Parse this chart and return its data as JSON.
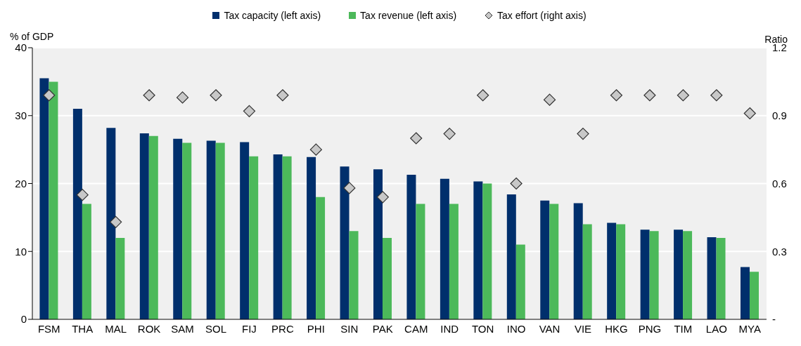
{
  "chart_data": {
    "type": "bar",
    "ylabel": "% of GDP",
    "y2label": "Ratio",
    "categories": [
      "FSM",
      "THA",
      "MAL",
      "ROK",
      "SAM",
      "SOL",
      "FIJ",
      "PRC",
      "PHI",
      "SIN",
      "PAK",
      "CAM",
      "IND",
      "TON",
      "INO",
      "VAN",
      "VIE",
      "HKG",
      "PNG",
      "TIM",
      "LAO",
      "MYA"
    ],
    "series": [
      {
        "name": "Tax capacity (left axis)",
        "color": "#002f6c",
        "values": [
          35.5,
          31.0,
          28.2,
          27.4,
          26.6,
          26.3,
          26.1,
          24.3,
          23.9,
          22.5,
          22.1,
          21.3,
          20.7,
          20.3,
          18.4,
          17.5,
          17.1,
          14.2,
          13.2,
          13.2,
          12.1,
          7.7
        ]
      },
      {
        "name": "Tax revenue (left axis)",
        "color": "#4cb95a",
        "values": [
          35.0,
          17.0,
          12.0,
          27.0,
          26.0,
          26.0,
          24.0,
          24.0,
          18.0,
          13.0,
          12.0,
          17.0,
          17.0,
          20.0,
          11.0,
          17.0,
          14.0,
          14.0,
          13.0,
          13.0,
          12.0,
          7.0
        ]
      },
      {
        "name": "Tax effort (right axis)",
        "type": "scatter",
        "axis": "y2",
        "marker": "diamond",
        "color": "#c8c8c8",
        "values": [
          0.99,
          0.55,
          0.43,
          0.99,
          0.98,
          0.99,
          0.92,
          0.99,
          0.75,
          0.58,
          0.54,
          0.8,
          0.82,
          0.99,
          0.6,
          0.97,
          0.82,
          0.99,
          0.99,
          0.99,
          0.99,
          0.91
        ]
      }
    ],
    "ylim": [
      0,
      40
    ],
    "yticks": [
      0,
      10,
      20,
      30,
      40
    ],
    "y2lim": [
      0,
      1.2
    ],
    "y2ticks": [
      {
        "value": 0,
        "label": "-"
      },
      0.3,
      0.6,
      0.9,
      1.2
    ],
    "grid": "y",
    "legend": "top"
  }
}
